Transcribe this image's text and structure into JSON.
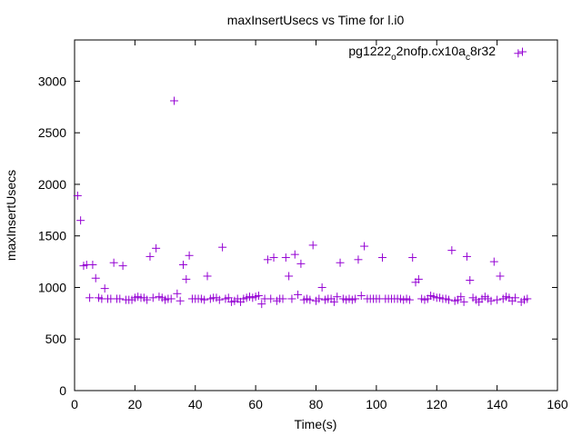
{
  "chart_data": {
    "type": "scatter",
    "title": "maxInsertUsecs vs Time for l.i0",
    "xlabel": "Time(s)",
    "ylabel": "maxInsertUsecs",
    "xlim": [
      0,
      160
    ],
    "ylim": [
      0,
      3400
    ],
    "xticks": [
      0,
      20,
      40,
      60,
      80,
      100,
      120,
      140,
      160
    ],
    "yticks": [
      0,
      500,
      1000,
      1500,
      2000,
      2500,
      3000
    ],
    "grid": false,
    "legend_position": "top-right",
    "marker": "+",
    "series": [
      {
        "legend_parts": {
          "base": "pg1222",
          "sub1": "o",
          "mid": "2nofp.cx10a",
          "sub2": "c",
          "tail": "8r32"
        },
        "color": "#9400d3",
        "points": [
          [
            1,
            1890
          ],
          [
            2,
            1650
          ],
          [
            3,
            1210
          ],
          [
            4,
            1220
          ],
          [
            5,
            900
          ],
          [
            6,
            1220
          ],
          [
            7,
            1090
          ],
          [
            8,
            900
          ],
          [
            9,
            890
          ],
          [
            10,
            990
          ],
          [
            11,
            890
          ],
          [
            12,
            890
          ],
          [
            13,
            1240
          ],
          [
            14,
            890
          ],
          [
            15,
            890
          ],
          [
            16,
            1210
          ],
          [
            17,
            880
          ],
          [
            18,
            880
          ],
          [
            19,
            880
          ],
          [
            20,
            900
          ],
          [
            21,
            910
          ],
          [
            22,
            900
          ],
          [
            23,
            900
          ],
          [
            24,
            880
          ],
          [
            25,
            1300
          ],
          [
            26,
            900
          ],
          [
            27,
            1380
          ],
          [
            28,
            910
          ],
          [
            29,
            900
          ],
          [
            30,
            880
          ],
          [
            31,
            890
          ],
          [
            32,
            890
          ],
          [
            33,
            2810
          ],
          [
            34,
            940
          ],
          [
            35,
            870
          ],
          [
            36,
            1220
          ],
          [
            37,
            1080
          ],
          [
            38,
            1310
          ],
          [
            39,
            890
          ],
          [
            40,
            890
          ],
          [
            41,
            890
          ],
          [
            42,
            890
          ],
          [
            43,
            880
          ],
          [
            44,
            1110
          ],
          [
            45,
            890
          ],
          [
            46,
            900
          ],
          [
            47,
            900
          ],
          [
            48,
            880
          ],
          [
            49,
            1390
          ],
          [
            50,
            890
          ],
          [
            51,
            900
          ],
          [
            52,
            860
          ],
          [
            53,
            870
          ],
          [
            54,
            890
          ],
          [
            55,
            860
          ],
          [
            56,
            890
          ],
          [
            57,
            900
          ],
          [
            58,
            910
          ],
          [
            59,
            900
          ],
          [
            60,
            910
          ],
          [
            61,
            920
          ],
          [
            62,
            840
          ],
          [
            63,
            890
          ],
          [
            64,
            1270
          ],
          [
            65,
            890
          ],
          [
            66,
            1290
          ],
          [
            67,
            870
          ],
          [
            68,
            890
          ],
          [
            69,
            890
          ],
          [
            70,
            1290
          ],
          [
            71,
            1110
          ],
          [
            72,
            890
          ],
          [
            73,
            1320
          ],
          [
            74,
            930
          ],
          [
            75,
            1230
          ],
          [
            76,
            880
          ],
          [
            77,
            890
          ],
          [
            78,
            880
          ],
          [
            79,
            1410
          ],
          [
            80,
            870
          ],
          [
            81,
            890
          ],
          [
            82,
            1000
          ],
          [
            83,
            880
          ],
          [
            84,
            890
          ],
          [
            85,
            890
          ],
          [
            86,
            860
          ],
          [
            87,
            910
          ],
          [
            88,
            1240
          ],
          [
            89,
            890
          ],
          [
            90,
            880
          ],
          [
            91,
            890
          ],
          [
            92,
            880
          ],
          [
            93,
            890
          ],
          [
            94,
            1270
          ],
          [
            95,
            920
          ],
          [
            96,
            1400
          ],
          [
            97,
            890
          ],
          [
            98,
            890
          ],
          [
            99,
            890
          ],
          [
            100,
            890
          ],
          [
            101,
            890
          ],
          [
            102,
            1290
          ],
          [
            103,
            890
          ],
          [
            104,
            890
          ],
          [
            105,
            890
          ],
          [
            106,
            890
          ],
          [
            107,
            890
          ],
          [
            108,
            890
          ],
          [
            109,
            880
          ],
          [
            110,
            890
          ],
          [
            111,
            880
          ],
          [
            112,
            1290
          ],
          [
            113,
            1050
          ],
          [
            114,
            1080
          ],
          [
            115,
            890
          ],
          [
            116,
            880
          ],
          [
            117,
            890
          ],
          [
            118,
            920
          ],
          [
            119,
            910
          ],
          [
            120,
            900
          ],
          [
            121,
            900
          ],
          [
            122,
            890
          ],
          [
            123,
            890
          ],
          [
            124,
            880
          ],
          [
            125,
            1360
          ],
          [
            126,
            870
          ],
          [
            127,
            880
          ],
          [
            128,
            910
          ],
          [
            129,
            860
          ],
          [
            130,
            1300
          ],
          [
            131,
            1070
          ],
          [
            132,
            900
          ],
          [
            133,
            880
          ],
          [
            134,
            860
          ],
          [
            135,
            890
          ],
          [
            136,
            910
          ],
          [
            137,
            890
          ],
          [
            138,
            870
          ],
          [
            139,
            1250
          ],
          [
            140,
            880
          ],
          [
            141,
            1110
          ],
          [
            142,
            890
          ],
          [
            143,
            910
          ],
          [
            144,
            900
          ],
          [
            145,
            870
          ],
          [
            146,
            900
          ],
          [
            147,
            3270
          ],
          [
            148,
            860
          ],
          [
            149,
            880
          ],
          [
            150,
            890
          ]
        ]
      }
    ]
  }
}
